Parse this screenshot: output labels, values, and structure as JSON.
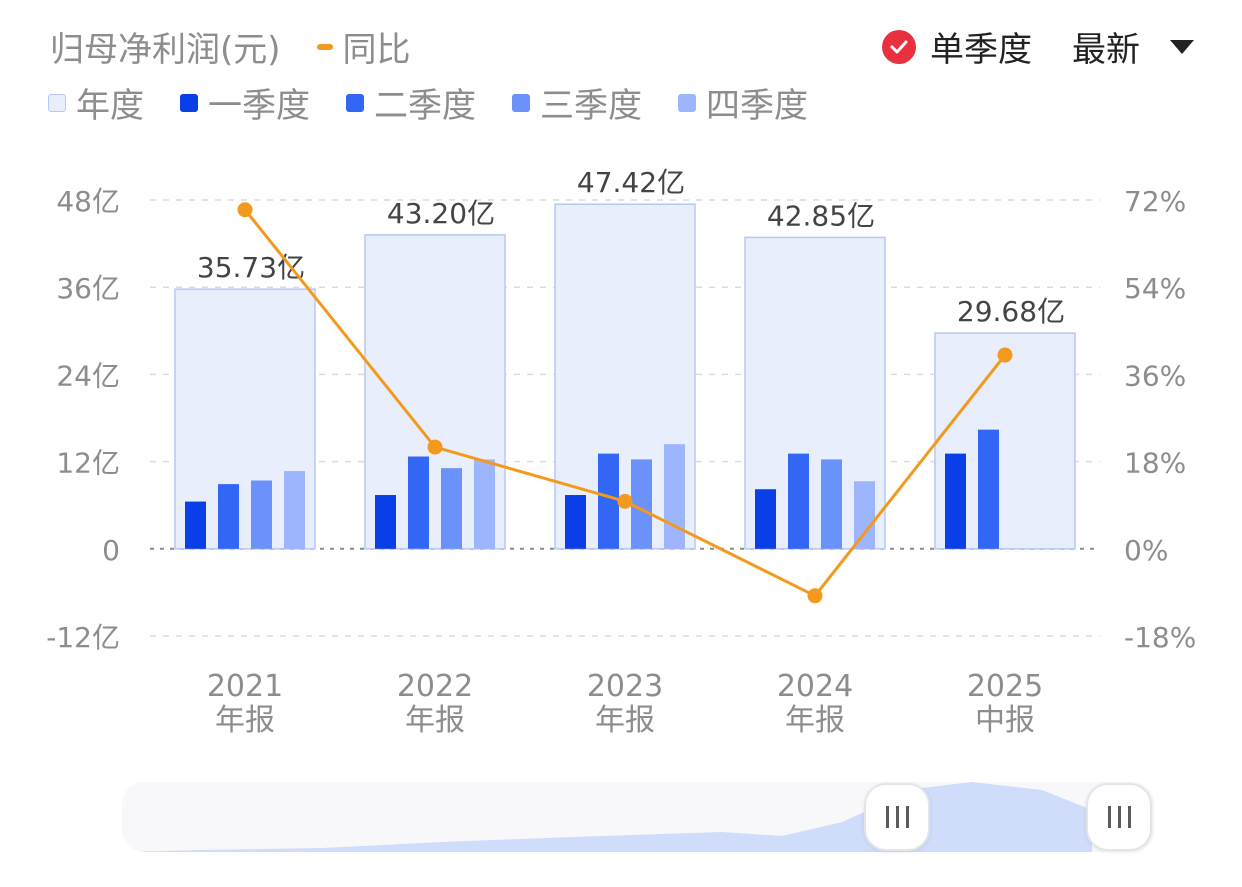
{
  "header": {
    "metric_label": "归母净利润(元)",
    "yoy_label": "同比",
    "single_quarter_label": "单季度",
    "latest_label": "最新"
  },
  "legend": [
    {
      "label": "年度",
      "color": "#e8eefc"
    },
    {
      "label": "一季度",
      "color": "#0a3ee6"
    },
    {
      "label": "二季度",
      "color": "#3267f5"
    },
    {
      "label": "三季度",
      "color": "#6b91fa"
    },
    {
      "label": "四季度",
      "color": "#9db5fc"
    }
  ],
  "colors": {
    "annual_fill": "#e8eefc",
    "annual_border": "#b8c8f4",
    "yoy_line": "#f39a1e",
    "accent": "#e8303f"
  },
  "chart_data": {
    "type": "bar",
    "categories": [
      "2021\n年报",
      "2022\n年报",
      "2023\n年报",
      "2024\n年报",
      "2025\n中报"
    ],
    "annual": [
      35.73,
      43.2,
      47.42,
      42.85,
      29.68
    ],
    "annual_labels": [
      "35.73亿",
      "43.20亿",
      "47.42亿",
      "42.85亿",
      "29.68亿"
    ],
    "series": [
      {
        "name": "一季度",
        "values": [
          6.5,
          7.4,
          7.4,
          8.2,
          13.1
        ]
      },
      {
        "name": "二季度",
        "values": [
          8.9,
          12.7,
          13.1,
          13.1,
          16.4
        ]
      },
      {
        "name": "三季度",
        "values": [
          9.4,
          11.1,
          12.3,
          12.3,
          null
        ]
      },
      {
        "name": "四季度",
        "values": [
          10.7,
          12.3,
          14.4,
          9.3,
          null
        ]
      }
    ],
    "yoy_name": "同比",
    "yoy": [
      70.0,
      21.0,
      9.8,
      -9.7,
      40.0
    ],
    "ylim": [
      -12,
      48
    ],
    "y_ticks": [
      "-12亿",
      "0",
      "12亿",
      "24亿",
      "36亿",
      "48亿"
    ],
    "y2lim": [
      -18,
      72
    ],
    "y2_ticks": [
      "-18%",
      "0%",
      "18%",
      "36%",
      "54%",
      "72%"
    ],
    "grid": true
  }
}
